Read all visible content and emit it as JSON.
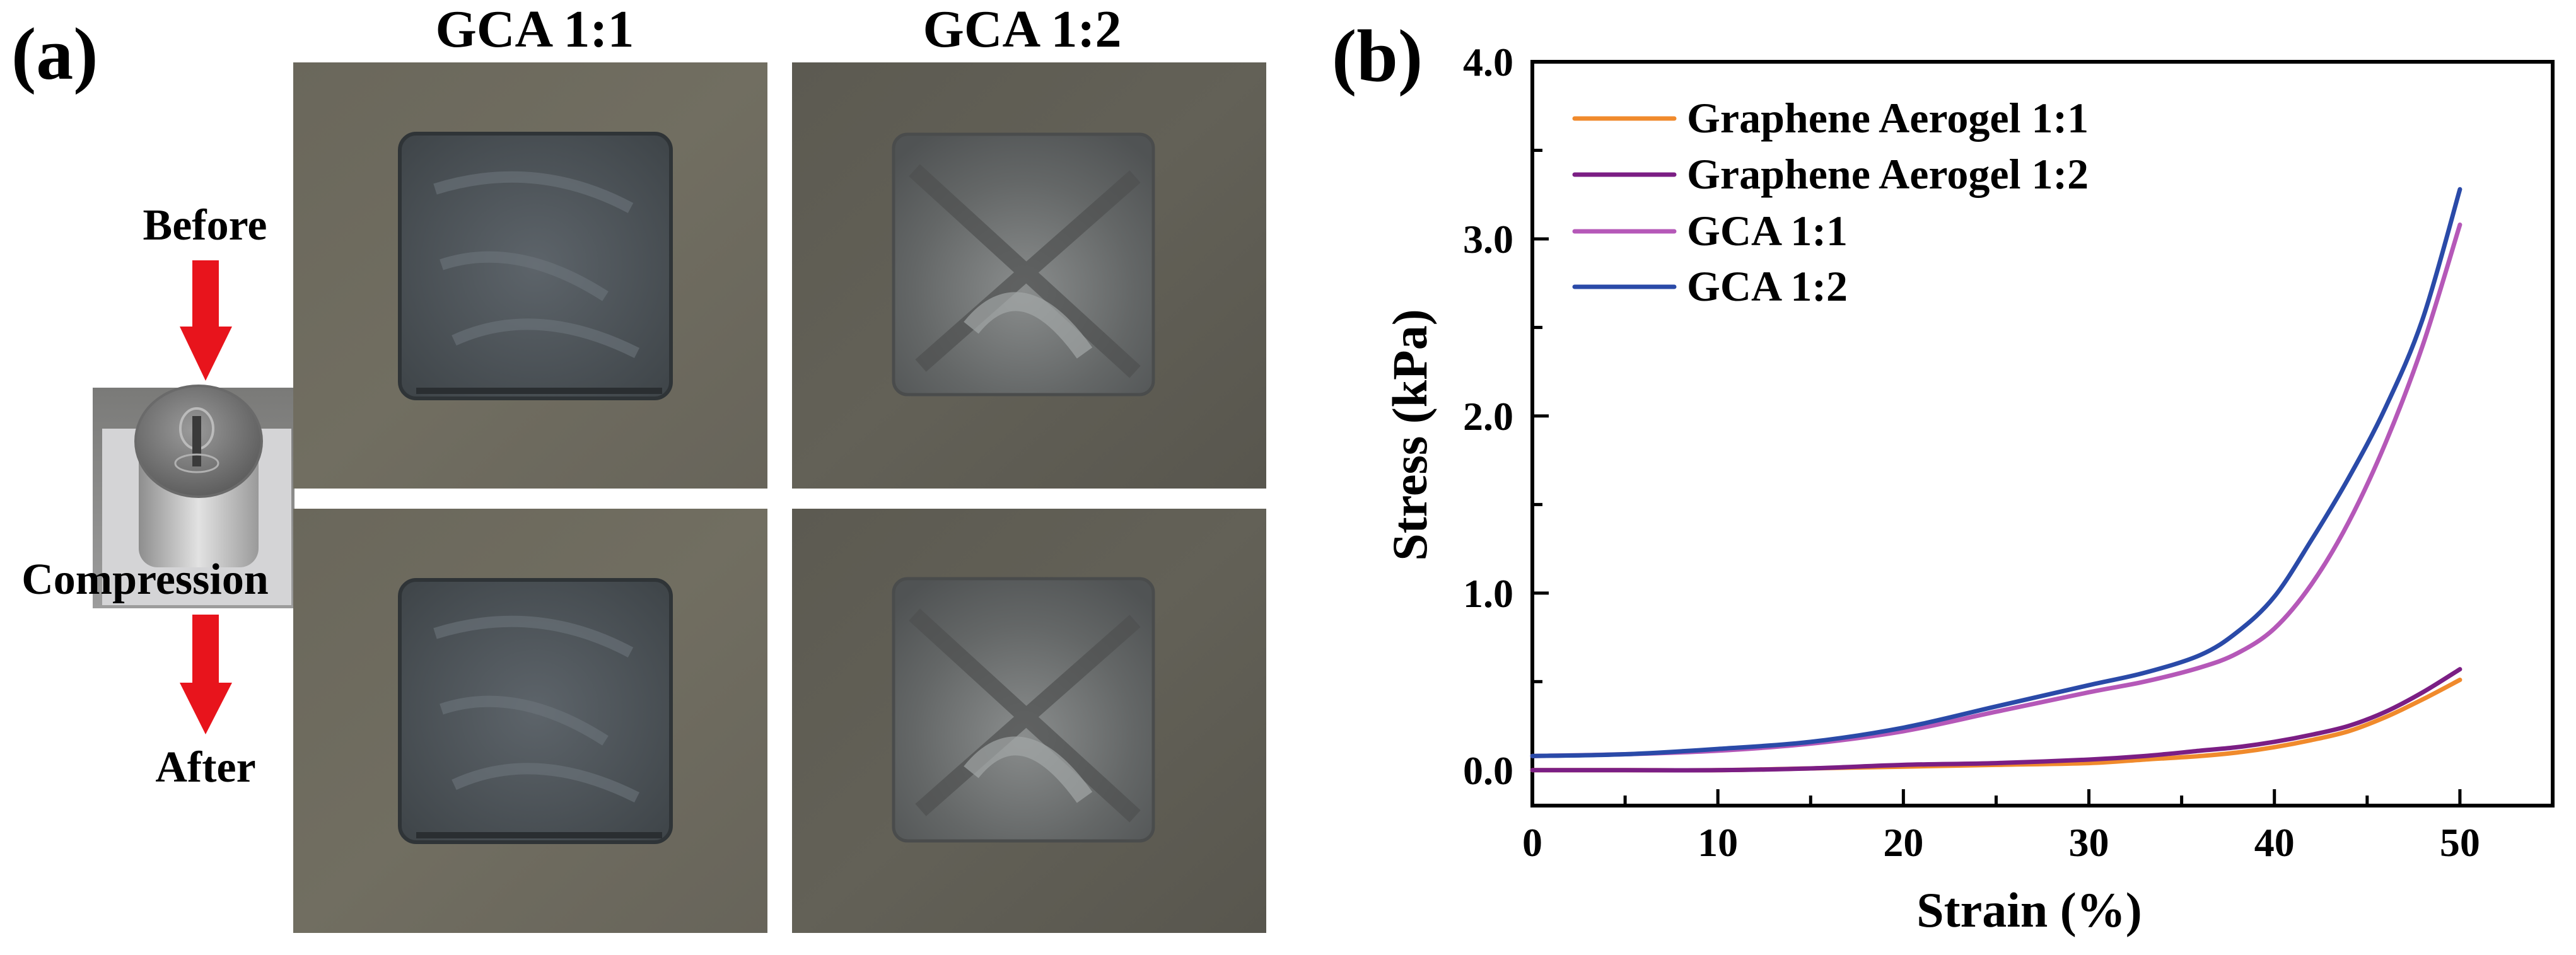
{
  "figure": {
    "panel_a": {
      "label": "(a)",
      "columns": [
        "GCA 1:1",
        "GCA 1:2"
      ],
      "rows": [
        "Before",
        "After"
      ],
      "process_label": "Compression",
      "arrow_color": "#e8141c",
      "photo_bg_colors": [
        "#6d6a5d",
        "#5f5d53"
      ],
      "sample_colors": [
        "#4b5157",
        "#66696a"
      ]
    },
    "panel_b": {
      "label": "(b)"
    }
  },
  "chart_data": {
    "type": "line",
    "title": "",
    "xlabel": "Strain (%)",
    "ylabel": "Stress (kPa)",
    "xlim": [
      0,
      55
    ],
    "ylim": [
      -0.2,
      4.0
    ],
    "xticks": [
      0,
      10,
      20,
      30,
      40,
      50
    ],
    "xtick_labels": [
      "0",
      "10",
      "20",
      "30",
      "40",
      "50"
    ],
    "yticks": [
      0.0,
      1.0,
      2.0,
      3.0,
      4.0
    ],
    "ytick_labels": [
      "0.0",
      "1.0",
      "2.0",
      "3.0",
      "4.0"
    ],
    "grid": false,
    "legend_position": "upper left",
    "series": [
      {
        "name": "Graphene Aerogel 1:1",
        "color": "#f08a2c",
        "x": [
          0,
          5,
          10,
          15,
          20,
          25,
          30,
          33,
          36,
          38,
          40,
          42,
          44,
          46,
          48,
          50
        ],
        "y": [
          0.0,
          0.0,
          0.0,
          0.01,
          0.02,
          0.03,
          0.04,
          0.06,
          0.08,
          0.1,
          0.13,
          0.17,
          0.22,
          0.3,
          0.4,
          0.51
        ]
      },
      {
        "name": "Graphene Aerogel 1:2",
        "color": "#7b1e84",
        "x": [
          0,
          5,
          10,
          15,
          20,
          25,
          30,
          33,
          36,
          38,
          40,
          42,
          44,
          46,
          48,
          50
        ],
        "y": [
          0.0,
          0.0,
          0.0,
          0.01,
          0.03,
          0.04,
          0.06,
          0.08,
          0.11,
          0.13,
          0.16,
          0.2,
          0.25,
          0.33,
          0.44,
          0.57
        ]
      },
      {
        "name": "GCA 1:1",
        "color": "#b558b8",
        "x": [
          0,
          5,
          10,
          15,
          20,
          25,
          30,
          33,
          36,
          38,
          40,
          42,
          44,
          46,
          48,
          50
        ],
        "y": [
          0.08,
          0.09,
          0.11,
          0.15,
          0.22,
          0.33,
          0.44,
          0.5,
          0.58,
          0.66,
          0.8,
          1.05,
          1.4,
          1.85,
          2.4,
          3.08
        ]
      },
      {
        "name": "GCA 1:2",
        "color": "#2a4aa8",
        "x": [
          0,
          5,
          10,
          15,
          20,
          25,
          30,
          33,
          36,
          38,
          40,
          42,
          44,
          46,
          48,
          50
        ],
        "y": [
          0.08,
          0.09,
          0.12,
          0.16,
          0.24,
          0.36,
          0.48,
          0.55,
          0.65,
          0.78,
          0.98,
          1.3,
          1.65,
          2.05,
          2.55,
          3.28
        ]
      }
    ]
  }
}
